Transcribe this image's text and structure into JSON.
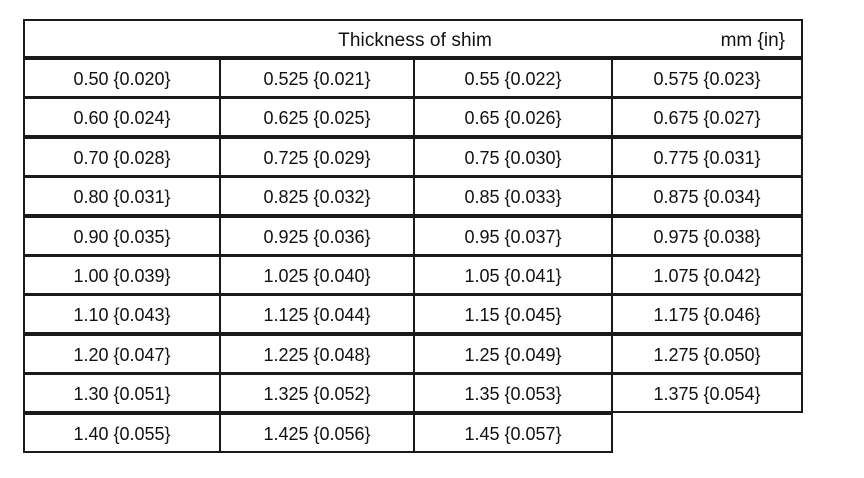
{
  "table": {
    "title": "Thickness of shim",
    "unit": "mm {in}",
    "rows": [
      [
        "0.50 {0.020}",
        "0.525 {0.021}",
        "0.55 {0.022}",
        "0.575 {0.023}"
      ],
      [
        "0.60 {0.024}",
        "0.625 {0.025}",
        "0.65 {0.026}",
        "0.675 {0.027}"
      ],
      [
        "0.70 {0.028}",
        "0.725 {0.029}",
        "0.75 {0.030}",
        "0.775 {0.031}"
      ],
      [
        "0.80 {0.031}",
        "0.825 {0.032}",
        "0.85 {0.033}",
        "0.875 {0.034}"
      ],
      [
        "0.90 {0.035}",
        "0.925 {0.036}",
        "0.95 {0.037}",
        "0.975 {0.038}"
      ],
      [
        "1.00 {0.039}",
        "1.025 {0.040}",
        "1.05 {0.041}",
        "1.075 {0.042}"
      ],
      [
        "1.10 {0.043}",
        "1.125 {0.044}",
        "1.15 {0.045}",
        "1.175 {0.046}"
      ],
      [
        "1.20 {0.047}",
        "1.225 {0.048}",
        "1.25 {0.049}",
        "1.275 {0.050}"
      ],
      [
        "1.30 {0.051}",
        "1.325 {0.052}",
        "1.35 {0.053}",
        "1.375 {0.054}"
      ],
      [
        "1.40 {0.055}",
        "1.425 {0.056}",
        "1.45 {0.057}"
      ]
    ]
  }
}
